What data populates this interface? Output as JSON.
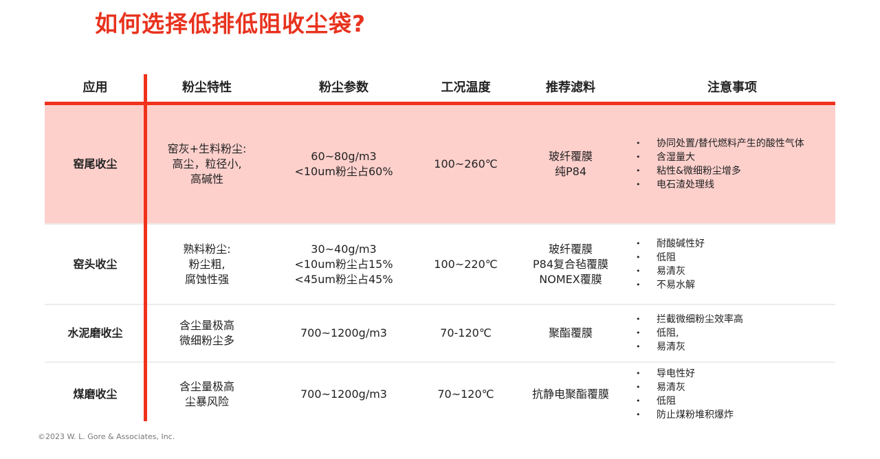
{
  "title": "如何选择低排低阻收尘袋?",
  "table": {
    "headers": [
      "应用",
      "粉尘特性",
      "粉尘参数",
      "工况温度",
      "推荐滤料",
      "注意事项"
    ],
    "rows": [
      {
        "app": "窑尾收尘",
        "dust": [
          "窑灰+生料粉尘:",
          "高尘，粒径小,",
          "高碱性"
        ],
        "params": [
          "60~80g/m3",
          "<10um粉尘占60%"
        ],
        "temp": "100~260℃",
        "media": [
          "玻纤覆膜",
          "纯P84"
        ],
        "notes": [
          "协同处置/替代燃料产生的酸性气体",
          "含湿量大",
          "粘性&微细粉尘增多",
          "电石渣处理线"
        ],
        "highlight": true
      },
      {
        "app": "窑头收尘",
        "dust": [
          "熟料粉尘:",
          "粉尘粗,",
          "腐蚀性强"
        ],
        "params": [
          "30~40g/m3",
          "<10um粉尘占15%",
          "<45um粉尘占45%"
        ],
        "temp": "100~220℃",
        "media": [
          "玻纤覆膜",
          "P84复合毡覆膜",
          "NOMEX覆膜"
        ],
        "notes": [
          "耐酸碱性好",
          "低阻",
          "易清灰",
          "不易水解"
        ]
      },
      {
        "app": "水泥磨收尘",
        "dust": [
          "含尘量极高",
          "微细粉尘多"
        ],
        "params": [
          "700~1200g/m3"
        ],
        "temp": "70-120℃",
        "media": [
          "聚酯覆膜"
        ],
        "notes": [
          "拦截微细粉尘效率高",
          "低阻,",
          "易清灰"
        ]
      },
      {
        "app": "煤磨收尘",
        "dust": [
          "含尘量极高",
          "尘暴风险"
        ],
        "params": [
          "700~1200g/m3"
        ],
        "temp": "70~120℃",
        "media": [
          "抗静电聚酯覆膜"
        ],
        "notes": [
          "导电性好",
          "易清灰",
          "低阻",
          "防止煤粉堆积爆炸"
        ]
      }
    ]
  },
  "footer": "©2023 W. L. Gore & Associates, Inc.",
  "colors": {
    "accent": "#e8321e",
    "highlight_row": "#fdd0cc"
  }
}
